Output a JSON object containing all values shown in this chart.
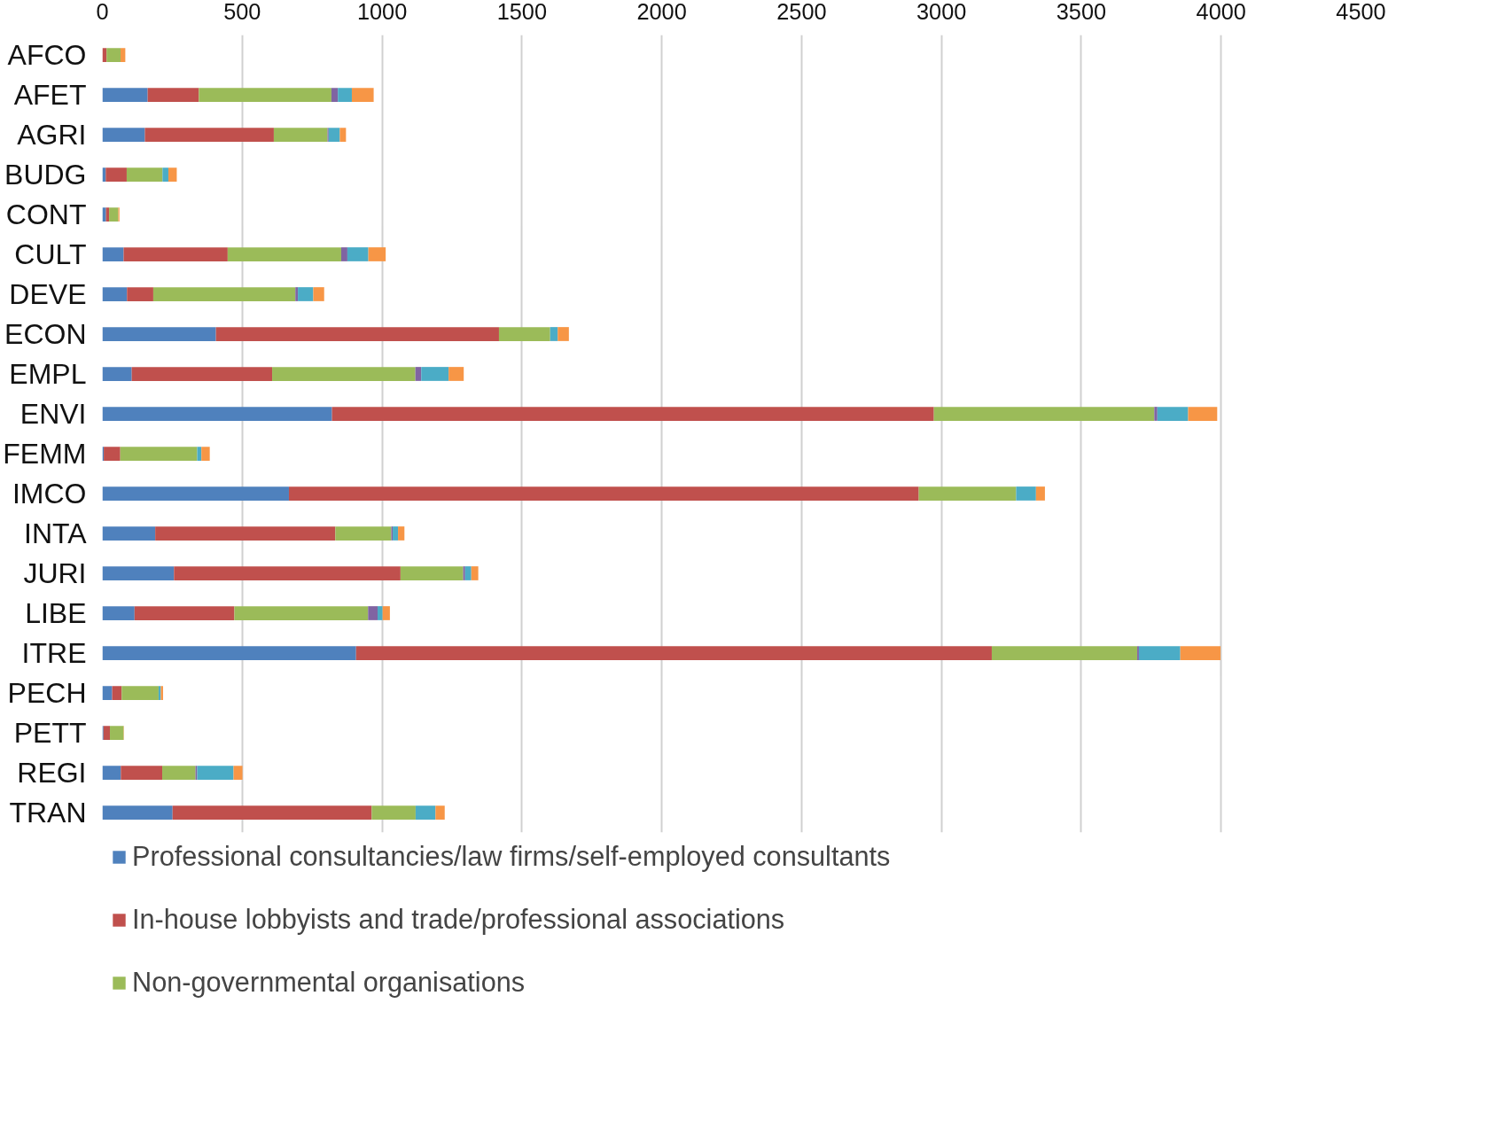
{
  "chart_data": {
    "type": "bar",
    "orientation": "horizontal",
    "stacked": true,
    "categories": [
      "AFCO",
      "AFET",
      "AGRI",
      "BUDG",
      "CONT",
      "CULT",
      "DEVE",
      "ECON",
      "EMPL",
      "ENVI",
      "FEMM",
      "IMCO",
      "INTA",
      "JURI",
      "LIBE",
      "ITRE",
      "PECH",
      "PETT",
      "REGI",
      "TRAN"
    ],
    "series": [
      {
        "name": "Professional consultancies/law firms/self-employed consultants",
        "color": "#4f81bd",
        "values": [
          0,
          162,
          152,
          12,
          13,
          76,
          88,
          406,
          105,
          821,
          5,
          667,
          189,
          256,
          115,
          907,
          35,
          4,
          66,
          251
        ]
      },
      {
        "name": "In-house lobbyists and trade/professional associations",
        "color": "#c0504d",
        "values": [
          15,
          183,
          461,
          75,
          11,
          372,
          94,
          1012,
          502,
          2152,
          59,
          2252,
          644,
          810,
          357,
          2273,
          34,
          23,
          148,
          712
        ]
      },
      {
        "name": "Non-governmental organisations",
        "color": "#9bbb59",
        "values": [
          50,
          474,
          192,
          128,
          33,
          406,
          508,
          183,
          512,
          788,
          275,
          348,
          200,
          224,
          478,
          520,
          132,
          49,
          119,
          157
        ]
      },
      {
        "color": "#8064a2",
        "values": [
          0,
          23,
          4,
          0,
          0,
          22,
          9,
          null,
          21,
          11,
          0,
          0,
          5,
          7,
          34,
          6,
          0,
          0,
          6,
          0
        ]
      },
      {
        "color": "#4bacc6",
        "values": [
          null,
          50,
          40,
          21,
          0,
          75,
          55,
          27,
          98,
          110,
          15,
          71,
          19,
          22,
          18,
          148,
          8,
          0,
          130,
          71
        ]
      },
      {
        "color": "#f79646",
        "values": [
          17,
          78,
          22,
          30,
          4,
          62,
          39,
          40,
          54,
          104,
          30,
          32,
          23,
          25,
          26,
          144,
          8,
          1,
          32,
          33
        ]
      }
    ],
    "xlim": [
      0,
      4500
    ],
    "xticks": [
      0,
      500,
      1000,
      1500,
      2000,
      2500,
      3000,
      3500,
      4000,
      4500
    ],
    "grid": "x",
    "legend": "bottom"
  }
}
